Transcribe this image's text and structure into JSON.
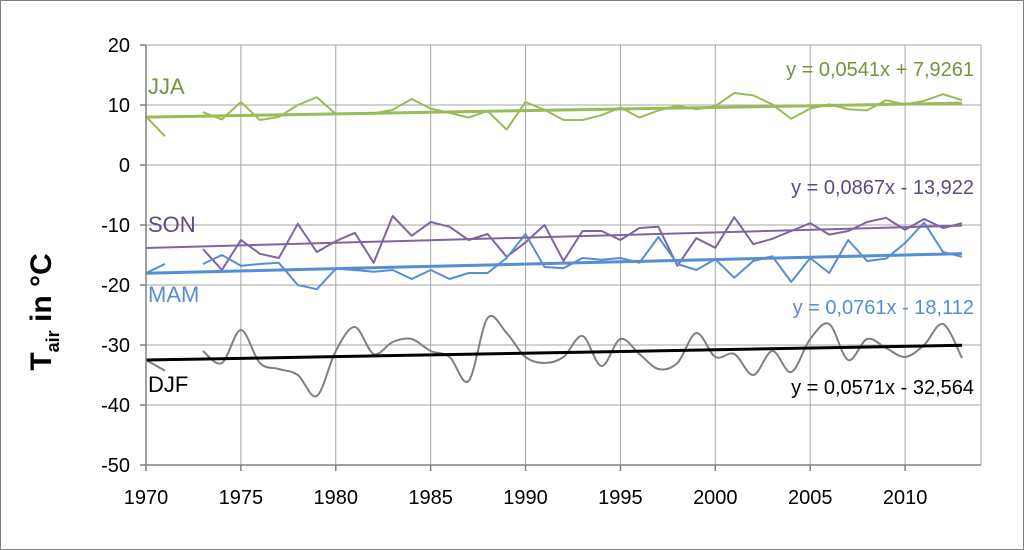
{
  "chart_data": {
    "type": "line",
    "title": "",
    "ylabel": {
      "main": "T",
      "sub": "air",
      "suffix": " in °C"
    },
    "xlabel": "",
    "xlim": [
      1970,
      2014
    ],
    "ylim": [
      -50,
      20
    ],
    "x_ticks": [
      1970,
      1975,
      1980,
      1985,
      1990,
      1995,
      2000,
      2005,
      2010
    ],
    "y_ticks": [
      20,
      10,
      0,
      -10,
      -20,
      -30,
      -40,
      -50
    ],
    "grid": true,
    "years": [
      1970,
      1971,
      1972,
      1973,
      1974,
      1975,
      1976,
      1977,
      1978,
      1979,
      1980,
      1981,
      1982,
      1983,
      1984,
      1985,
      1986,
      1987,
      1988,
      1989,
      1990,
      1991,
      1992,
      1993,
      1994,
      1995,
      1996,
      1997,
      1998,
      1999,
      2000,
      2001,
      2002,
      2003,
      2004,
      2005,
      2006,
      2007,
      2008,
      2009,
      2010,
      2011,
      2012,
      2013
    ],
    "series": [
      {
        "name": "JJA",
        "color": "#9bbb59",
        "smooth": false,
        "values": [
          8.1,
          4.8,
          null,
          8.8,
          7.6,
          10.5,
          7.5,
          8.0,
          10.0,
          11.3,
          8.5,
          8.6,
          8.6,
          9.2,
          11.0,
          9.4,
          8.7,
          7.9,
          9.0,
          5.9,
          10.5,
          9.2,
          7.5,
          7.5,
          8.3,
          9.6,
          7.9,
          9.1,
          9.9,
          9.3,
          9.8,
          12.0,
          11.6,
          10.1,
          7.7,
          9.4,
          10.1,
          9.3,
          9.1,
          10.8,
          10.1,
          10.7,
          11.8,
          10.8
        ],
        "trend": {
          "slope": 0.0541,
          "intercept": 7.9261,
          "color": "#9bbb59",
          "width": 3
        },
        "label": "JJA",
        "equation": "y = 0,0541x + 7,9261"
      },
      {
        "name": "SON",
        "color": "#8064a2",
        "smooth": false,
        "values": [
          null,
          null,
          null,
          -14.0,
          -17.5,
          -12.5,
          -14.8,
          -15.5,
          -9.8,
          -14.5,
          -12.7,
          -11.3,
          -16.3,
          -8.5,
          -11.8,
          -9.5,
          -10.3,
          -12.5,
          -11.5,
          -15.3,
          -12.9,
          -10.0,
          -16.0,
          -11.0,
          -11.0,
          -12.5,
          -10.5,
          -10.3,
          -16.8,
          -12.2,
          -13.8,
          -8.7,
          -13.2,
          -12.3,
          -11.0,
          -9.7,
          -11.6,
          -11.0,
          -9.5,
          -8.8,
          -10.8,
          -9.0,
          -10.5,
          -9.7
        ],
        "trend": {
          "slope": 0.0867,
          "intercept": -13.922,
          "color": "#8064a2",
          "width": 2
        },
        "label": "SON",
        "equation": "y = 0,0867x - 13,922"
      },
      {
        "name": "MAM",
        "color": "#558ed5",
        "smooth": false,
        "values": [
          -18.0,
          -16.5,
          null,
          -16.5,
          -15.0,
          -16.8,
          -16.5,
          -16.3,
          -20.0,
          -20.7,
          -17.3,
          -17.5,
          -17.8,
          -17.5,
          -19.0,
          -17.5,
          -19.0,
          -18.0,
          -18.0,
          -15.5,
          -11.5,
          -17.0,
          -17.2,
          -15.5,
          -15.8,
          -15.5,
          -16.3,
          -12.0,
          -16.5,
          -17.5,
          -15.7,
          -18.8,
          -16.0,
          -15.2,
          -19.5,
          -15.5,
          -18.0,
          -12.5,
          -16.0,
          -15.6,
          -13.0,
          -9.6,
          -14.5,
          -15.3
        ],
        "trend": {
          "slope": 0.0761,
          "intercept": -18.112,
          "color": "#558ed5",
          "width": 3
        },
        "label": "MAM",
        "equation": "y = 0,0761x - 18,112"
      },
      {
        "name": "DJF",
        "color": "#808080",
        "smooth": true,
        "values": [
          -32.5,
          -34.3,
          null,
          -31.0,
          -33.0,
          -27.5,
          -33.0,
          -34.0,
          -35.0,
          -38.5,
          -31.0,
          -27.0,
          -31.5,
          -29.5,
          -29.0,
          -31.0,
          -32.0,
          -36.0,
          -25.5,
          -28.0,
          -32.0,
          -33.0,
          -32.0,
          -28.5,
          -33.5,
          -29.0,
          -31.5,
          -34.0,
          -33.0,
          -28.0,
          -32.0,
          -31.5,
          -35.0,
          -31.0,
          -34.5,
          -29.0,
          -26.5,
          -32.5,
          -29.0,
          -30.5,
          -32.0,
          -30.0,
          -26.5,
          -32.2
        ],
        "trend": {
          "slope": 0.0571,
          "intercept": -32.564,
          "color": "#000000",
          "width": 3
        },
        "label": "DJF",
        "equation": "y = 0,0571x - 32,564"
      }
    ]
  },
  "annotation_colors": {
    "JJA": "#77933c",
    "SON": "#604a7b",
    "MAM": "#558ed5",
    "DJF": "#000000"
  }
}
